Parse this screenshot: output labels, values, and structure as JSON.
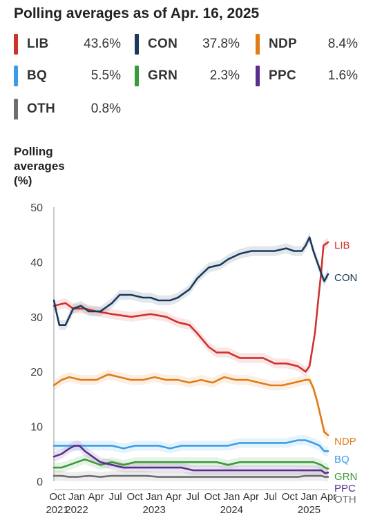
{
  "title": "Polling averages as of Apr. 16, 2025",
  "legend": [
    {
      "code": "LIB",
      "value": "43.6%",
      "color": "#d0312d"
    },
    {
      "code": "CON",
      "value": "37.8%",
      "color": "#1a3a5c"
    },
    {
      "code": "NDP",
      "value": "8.4%",
      "color": "#e07b16"
    },
    {
      "code": "BQ",
      "value": "5.5%",
      "color": "#3a9ee6"
    },
    {
      "code": "GRN",
      "value": "2.3%",
      "color": "#3a9a3a"
    },
    {
      "code": "PPC",
      "value": "1.6%",
      "color": "#5b2d8e"
    },
    {
      "code": "OTH",
      "value": "0.8%",
      "color": "#6e6e6e"
    }
  ],
  "chart_data": {
    "type": "line",
    "ylabel": "Polling averages (%)",
    "ylim": [
      0,
      50
    ],
    "yticks": [
      0,
      10,
      20,
      30,
      40,
      50
    ],
    "xlim": [
      2021.75,
      2025.29
    ],
    "xtick_labels": [
      {
        "x": 2021.75,
        "month": "Oct",
        "year": "2021"
      },
      {
        "x": 2022.0,
        "month": "Jan",
        "year": "2022"
      },
      {
        "x": 2022.25,
        "month": "Apr",
        "year": ""
      },
      {
        "x": 2022.5,
        "month": "Jul",
        "year": ""
      },
      {
        "x": 2022.75,
        "month": "Oct",
        "year": ""
      },
      {
        "x": 2023.0,
        "month": "Jan",
        "year": "2023"
      },
      {
        "x": 2023.25,
        "month": "Apr",
        "year": ""
      },
      {
        "x": 2023.5,
        "month": "Jul",
        "year": ""
      },
      {
        "x": 2023.75,
        "month": "Oct",
        "year": ""
      },
      {
        "x": 2024.0,
        "month": "Jan",
        "year": "2024"
      },
      {
        "x": 2024.25,
        "month": "Apr",
        "year": ""
      },
      {
        "x": 2024.5,
        "month": "Jul",
        "year": ""
      },
      {
        "x": 2024.75,
        "month": "Oct",
        "year": ""
      },
      {
        "x": 2025.0,
        "month": "Jan",
        "year": "2025"
      },
      {
        "x": 2025.25,
        "month": "Apr",
        "year": ""
      }
    ],
    "grid": false,
    "series": [
      {
        "name": "LIB",
        "color": "#d0312d",
        "end_value": 43.6,
        "points": [
          [
            2021.75,
            32
          ],
          [
            2021.9,
            32.5
          ],
          [
            2022.0,
            31.5
          ],
          [
            2022.15,
            31.5
          ],
          [
            2022.3,
            31
          ],
          [
            2022.5,
            30.5
          ],
          [
            2022.75,
            30
          ],
          [
            2023.0,
            30.5
          ],
          [
            2023.2,
            30
          ],
          [
            2023.35,
            29
          ],
          [
            2023.5,
            28.5
          ],
          [
            2023.6,
            27
          ],
          [
            2023.75,
            24.5
          ],
          [
            2023.85,
            23.5
          ],
          [
            2024.0,
            23.5
          ],
          [
            2024.15,
            22.5
          ],
          [
            2024.3,
            22.5
          ],
          [
            2024.45,
            22.5
          ],
          [
            2024.6,
            21.5
          ],
          [
            2024.75,
            21.5
          ],
          [
            2024.9,
            21
          ],
          [
            2025.0,
            20
          ],
          [
            2025.05,
            21
          ],
          [
            2025.12,
            27
          ],
          [
            2025.17,
            34
          ],
          [
            2025.2,
            38
          ],
          [
            2025.23,
            43
          ],
          [
            2025.29,
            43.6
          ]
        ]
      },
      {
        "name": "CON",
        "color": "#1a3a5c",
        "end_value": 37.8,
        "points": [
          [
            2021.75,
            33
          ],
          [
            2021.78,
            31
          ],
          [
            2021.82,
            28.5
          ],
          [
            2021.9,
            28.5
          ],
          [
            2022.0,
            31.5
          ],
          [
            2022.1,
            32
          ],
          [
            2022.2,
            31
          ],
          [
            2022.35,
            31
          ],
          [
            2022.5,
            32.5
          ],
          [
            2022.6,
            34
          ],
          [
            2022.75,
            34
          ],
          [
            2022.9,
            33.5
          ],
          [
            2023.0,
            33.5
          ],
          [
            2023.1,
            33
          ],
          [
            2023.25,
            33
          ],
          [
            2023.35,
            33.5
          ],
          [
            2023.5,
            35
          ],
          [
            2023.6,
            37
          ],
          [
            2023.75,
            39
          ],
          [
            2023.9,
            39.5
          ],
          [
            2024.0,
            40.5
          ],
          [
            2024.15,
            41.5
          ],
          [
            2024.3,
            42
          ],
          [
            2024.45,
            42
          ],
          [
            2024.6,
            42
          ],
          [
            2024.75,
            42.5
          ],
          [
            2024.85,
            42
          ],
          [
            2024.95,
            42
          ],
          [
            2025.0,
            43
          ],
          [
            2025.05,
            44.5
          ],
          [
            2025.1,
            42
          ],
          [
            2025.15,
            40
          ],
          [
            2025.2,
            38
          ],
          [
            2025.24,
            36.5
          ],
          [
            2025.29,
            37.8
          ]
        ]
      },
      {
        "name": "NDP",
        "color": "#e07b16",
        "end_value": 8.4,
        "points": [
          [
            2021.75,
            17.5
          ],
          [
            2021.85,
            18.5
          ],
          [
            2021.95,
            19
          ],
          [
            2022.1,
            18.5
          ],
          [
            2022.3,
            18.5
          ],
          [
            2022.45,
            19.5
          ],
          [
            2022.6,
            19
          ],
          [
            2022.75,
            18.5
          ],
          [
            2022.9,
            18.5
          ],
          [
            2023.05,
            19
          ],
          [
            2023.2,
            18.5
          ],
          [
            2023.35,
            18.5
          ],
          [
            2023.5,
            18
          ],
          [
            2023.65,
            18.5
          ],
          [
            2023.8,
            18
          ],
          [
            2023.95,
            19
          ],
          [
            2024.1,
            18.5
          ],
          [
            2024.25,
            18.5
          ],
          [
            2024.4,
            18
          ],
          [
            2024.55,
            17.5
          ],
          [
            2024.7,
            17.5
          ],
          [
            2024.85,
            18
          ],
          [
            2025.0,
            18.5
          ],
          [
            2025.05,
            18.5
          ],
          [
            2025.1,
            17
          ],
          [
            2025.15,
            14.5
          ],
          [
            2025.2,
            11.5
          ],
          [
            2025.24,
            9
          ],
          [
            2025.29,
            8.4
          ]
        ]
      },
      {
        "name": "BQ",
        "color": "#3a9ee6",
        "end_value": 5.5,
        "points": [
          [
            2021.75,
            6.5
          ],
          [
            2021.9,
            6.5
          ],
          [
            2022.05,
            6.5
          ],
          [
            2022.2,
            6.5
          ],
          [
            2022.35,
            6.5
          ],
          [
            2022.5,
            6.5
          ],
          [
            2022.65,
            6
          ],
          [
            2022.8,
            6.5
          ],
          [
            2022.95,
            6.5
          ],
          [
            2023.1,
            6.5
          ],
          [
            2023.25,
            6
          ],
          [
            2023.4,
            6.5
          ],
          [
            2023.55,
            6.5
          ],
          [
            2023.7,
            6.5
          ],
          [
            2023.85,
            6.5
          ],
          [
            2024.0,
            6.5
          ],
          [
            2024.15,
            7
          ],
          [
            2024.3,
            7
          ],
          [
            2024.45,
            7
          ],
          [
            2024.6,
            7
          ],
          [
            2024.75,
            7
          ],
          [
            2024.9,
            7.5
          ],
          [
            2025.0,
            7.5
          ],
          [
            2025.1,
            7
          ],
          [
            2025.18,
            6.5
          ],
          [
            2025.24,
            5.5
          ],
          [
            2025.29,
            5.5
          ]
        ]
      },
      {
        "name": "GRN",
        "color": "#3a9a3a",
        "end_value": 2.3,
        "points": [
          [
            2021.75,
            2.5
          ],
          [
            2021.85,
            2.5
          ],
          [
            2021.95,
            3
          ],
          [
            2022.05,
            3.5
          ],
          [
            2022.15,
            4
          ],
          [
            2022.25,
            3.5
          ],
          [
            2022.35,
            3
          ],
          [
            2022.5,
            3.5
          ],
          [
            2022.65,
            3
          ],
          [
            2022.8,
            3.5
          ],
          [
            2022.95,
            3.5
          ],
          [
            2023.1,
            3.5
          ],
          [
            2023.25,
            3.5
          ],
          [
            2023.4,
            3.5
          ],
          [
            2023.55,
            3.5
          ],
          [
            2023.7,
            3.5
          ],
          [
            2023.85,
            3.5
          ],
          [
            2024.0,
            3
          ],
          [
            2024.15,
            3.5
          ],
          [
            2024.3,
            3.5
          ],
          [
            2024.45,
            3.5
          ],
          [
            2024.6,
            3.5
          ],
          [
            2024.75,
            3.5
          ],
          [
            2024.9,
            3.5
          ],
          [
            2025.0,
            3.5
          ],
          [
            2025.1,
            3.5
          ],
          [
            2025.2,
            3
          ],
          [
            2025.25,
            2.5
          ],
          [
            2025.29,
            2.3
          ]
        ]
      },
      {
        "name": "PPC",
        "color": "#5b2d8e",
        "end_value": 1.6,
        "points": [
          [
            2021.75,
            4.5
          ],
          [
            2021.85,
            5
          ],
          [
            2021.95,
            6
          ],
          [
            2022.02,
            6.5
          ],
          [
            2022.08,
            6.5
          ],
          [
            2022.15,
            5.5
          ],
          [
            2022.25,
            4.5
          ],
          [
            2022.35,
            3.5
          ],
          [
            2022.5,
            3
          ],
          [
            2022.65,
            2.5
          ],
          [
            2022.8,
            2.5
          ],
          [
            2022.95,
            2.5
          ],
          [
            2023.1,
            2.5
          ],
          [
            2023.25,
            2.5
          ],
          [
            2023.4,
            2.5
          ],
          [
            2023.55,
            2
          ],
          [
            2023.7,
            2
          ],
          [
            2023.85,
            2
          ],
          [
            2024.0,
            2
          ],
          [
            2024.15,
            2
          ],
          [
            2024.3,
            2
          ],
          [
            2024.45,
            2
          ],
          [
            2024.6,
            2
          ],
          [
            2024.75,
            2
          ],
          [
            2024.9,
            2
          ],
          [
            2025.0,
            2
          ],
          [
            2025.1,
            2
          ],
          [
            2025.2,
            2
          ],
          [
            2025.25,
            1.5
          ],
          [
            2025.29,
            1.6
          ]
        ]
      },
      {
        "name": "OTH",
        "color": "#6e6e6e",
        "end_value": 0.8,
        "points": [
          [
            2021.75,
            1
          ],
          [
            2021.85,
            1
          ],
          [
            2021.95,
            0.8
          ],
          [
            2022.05,
            0.8
          ],
          [
            2022.2,
            1
          ],
          [
            2022.35,
            0.8
          ],
          [
            2022.5,
            1
          ],
          [
            2022.65,
            1
          ],
          [
            2022.8,
            1
          ],
          [
            2022.95,
            1
          ],
          [
            2023.1,
            0.8
          ],
          [
            2023.25,
            0.8
          ],
          [
            2023.4,
            0.8
          ],
          [
            2023.55,
            0.8
          ],
          [
            2023.7,
            0.8
          ],
          [
            2023.85,
            0.8
          ],
          [
            2024.0,
            0.8
          ],
          [
            2024.15,
            0.8
          ],
          [
            2024.3,
            0.8
          ],
          [
            2024.45,
            0.8
          ],
          [
            2024.6,
            0.8
          ],
          [
            2024.75,
            0.8
          ],
          [
            2024.9,
            0.8
          ],
          [
            2025.0,
            1
          ],
          [
            2025.1,
            1
          ],
          [
            2025.2,
            1
          ],
          [
            2025.25,
            0.8
          ],
          [
            2025.29,
            0.8
          ]
        ]
      }
    ]
  }
}
